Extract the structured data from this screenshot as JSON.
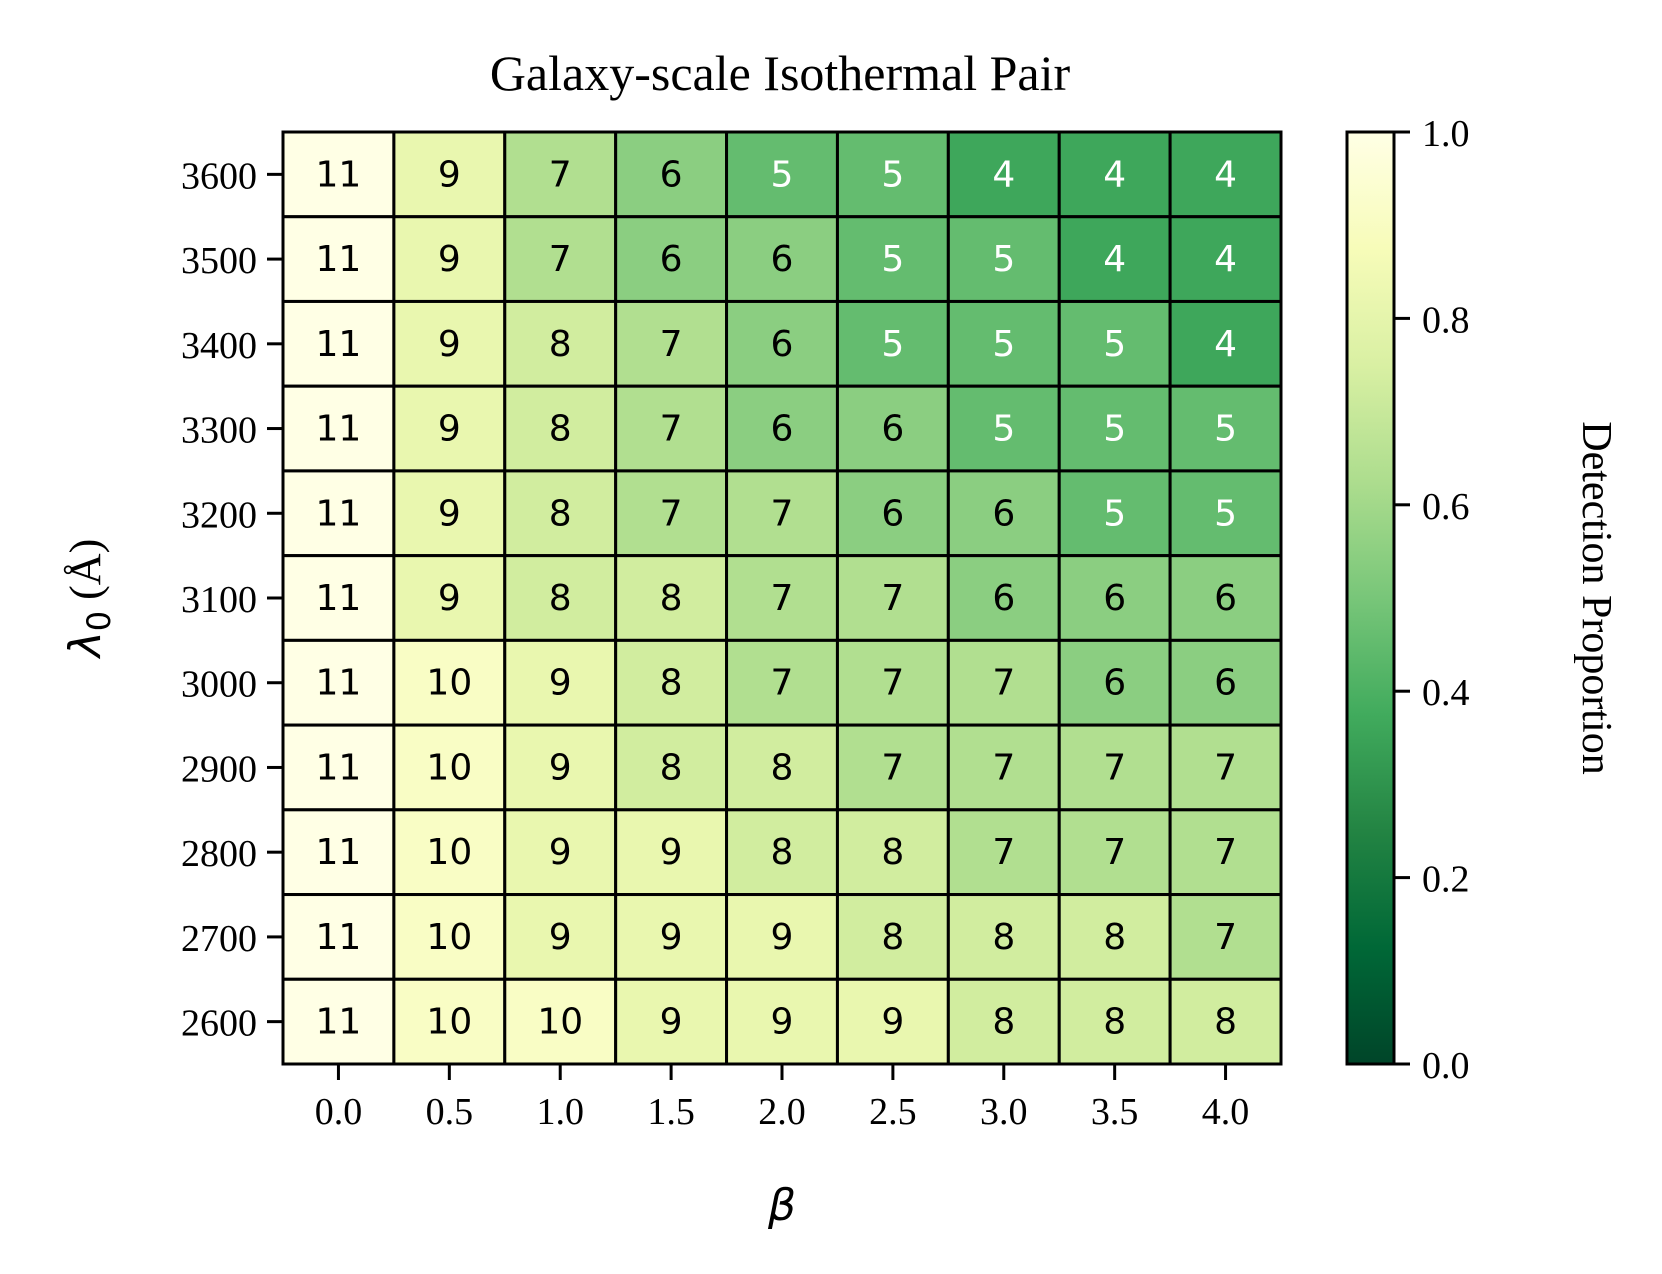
{
  "chart_data": {
    "type": "heatmap",
    "title": "Galaxy-scale Isothermal Pair",
    "xlabel": "β",
    "ylabel": "λ",
    "ylabel_subscript": "0",
    "ylabel_unit": " (Å)",
    "x": [
      "0.0",
      "0.5",
      "1.0",
      "1.5",
      "2.0",
      "2.5",
      "3.0",
      "3.5",
      "4.0"
    ],
    "y": [
      "3600",
      "3500",
      "3400",
      "3300",
      "3200",
      "3100",
      "3000",
      "2900",
      "2800",
      "2700",
      "2600"
    ],
    "values": [
      [
        11,
        9,
        7,
        6,
        5,
        5,
        4,
        4,
        4
      ],
      [
        11,
        9,
        7,
        6,
        6,
        5,
        5,
        4,
        4
      ],
      [
        11,
        9,
        8,
        7,
        6,
        5,
        5,
        5,
        4
      ],
      [
        11,
        9,
        8,
        7,
        6,
        6,
        5,
        5,
        5
      ],
      [
        11,
        9,
        8,
        7,
        7,
        6,
        6,
        5,
        5
      ],
      [
        11,
        9,
        8,
        8,
        7,
        7,
        6,
        6,
        6
      ],
      [
        11,
        10,
        9,
        8,
        7,
        7,
        7,
        6,
        6
      ],
      [
        11,
        10,
        9,
        8,
        8,
        7,
        7,
        7,
        7
      ],
      [
        11,
        10,
        9,
        9,
        8,
        8,
        7,
        7,
        7
      ],
      [
        11,
        10,
        9,
        9,
        9,
        8,
        8,
        8,
        7
      ],
      [
        11,
        10,
        10,
        9,
        9,
        9,
        8,
        8,
        8
      ]
    ],
    "total": 11,
    "colorbar": {
      "label": "Detection Proportion",
      "range": [
        0.0,
        1.0
      ],
      "ticks": [
        "0.0",
        "0.2",
        "0.4",
        "0.6",
        "0.8",
        "1.0"
      ],
      "colormap": "YlGn_r",
      "colors": [
        "#004529",
        "#006837",
        "#238443",
        "#41ab5d",
        "#78c679",
        "#addd8e",
        "#d9f0a3",
        "#f7fcb9",
        "#ffffe5"
      ]
    },
    "grid": false,
    "cell_border_color": "#000000"
  }
}
